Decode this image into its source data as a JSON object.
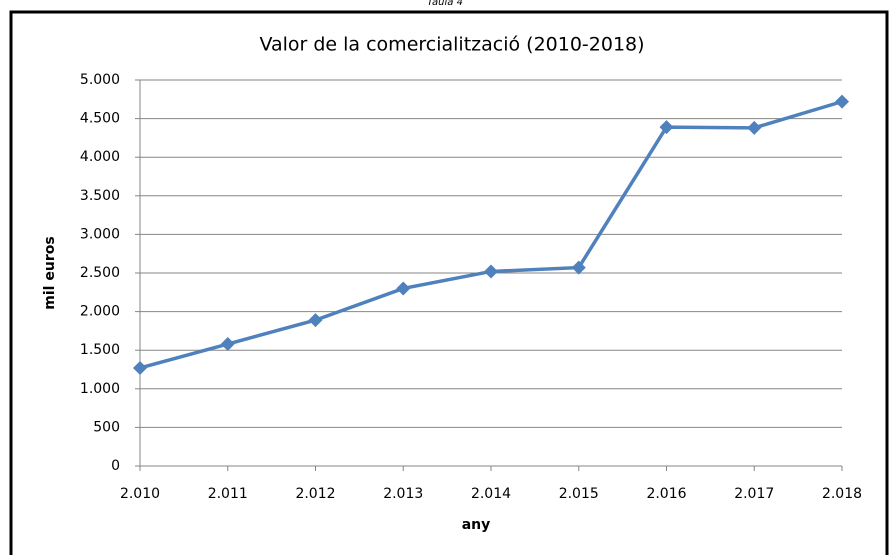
{
  "caption": "Taula 4",
  "chart_data": {
    "type": "line",
    "title": "Valor de la comercialització (2010-2018)",
    "x_label": "any",
    "y_label": "mil euros",
    "x": [
      2010,
      2011,
      2012,
      2013,
      2014,
      2015,
      2016,
      2017,
      2018
    ],
    "values": [
      1270,
      1580,
      1890,
      2300,
      2520,
      2570,
      4390,
      4380,
      4720
    ],
    "color": "#4f81bd",
    "xlim": [
      2010,
      2018
    ],
    "xticks": [
      {
        "value": 2010,
        "label": "2.010"
      },
      {
        "value": 2011,
        "label": "2.011"
      },
      {
        "value": 2012,
        "label": "2.012"
      },
      {
        "value": 2013,
        "label": "2.013"
      },
      {
        "value": 2014,
        "label": "2.014"
      },
      {
        "value": 2015,
        "label": "2.015"
      },
      {
        "value": 2016,
        "label": "2.016"
      },
      {
        "value": 2017,
        "label": "2.017"
      },
      {
        "value": 2018,
        "label": "2.018"
      }
    ],
    "ylim": [
      0,
      5000
    ],
    "yticks": [
      0,
      500,
      {
        "value": 1000,
        "label": "1.000"
      },
      {
        "value": 1500,
        "label": "1.500"
      },
      {
        "value": 2000,
        "label": "2.000"
      },
      {
        "value": 2500,
        "label": "2.500"
      },
      {
        "value": 3000,
        "label": "3.000"
      },
      {
        "value": 3500,
        "label": "3.500"
      },
      {
        "value": 4000,
        "label": "4.000"
      },
      {
        "value": 4500,
        "label": "4.500"
      },
      {
        "value": 5000,
        "label": "5.000"
      }
    ],
    "grid": true
  }
}
